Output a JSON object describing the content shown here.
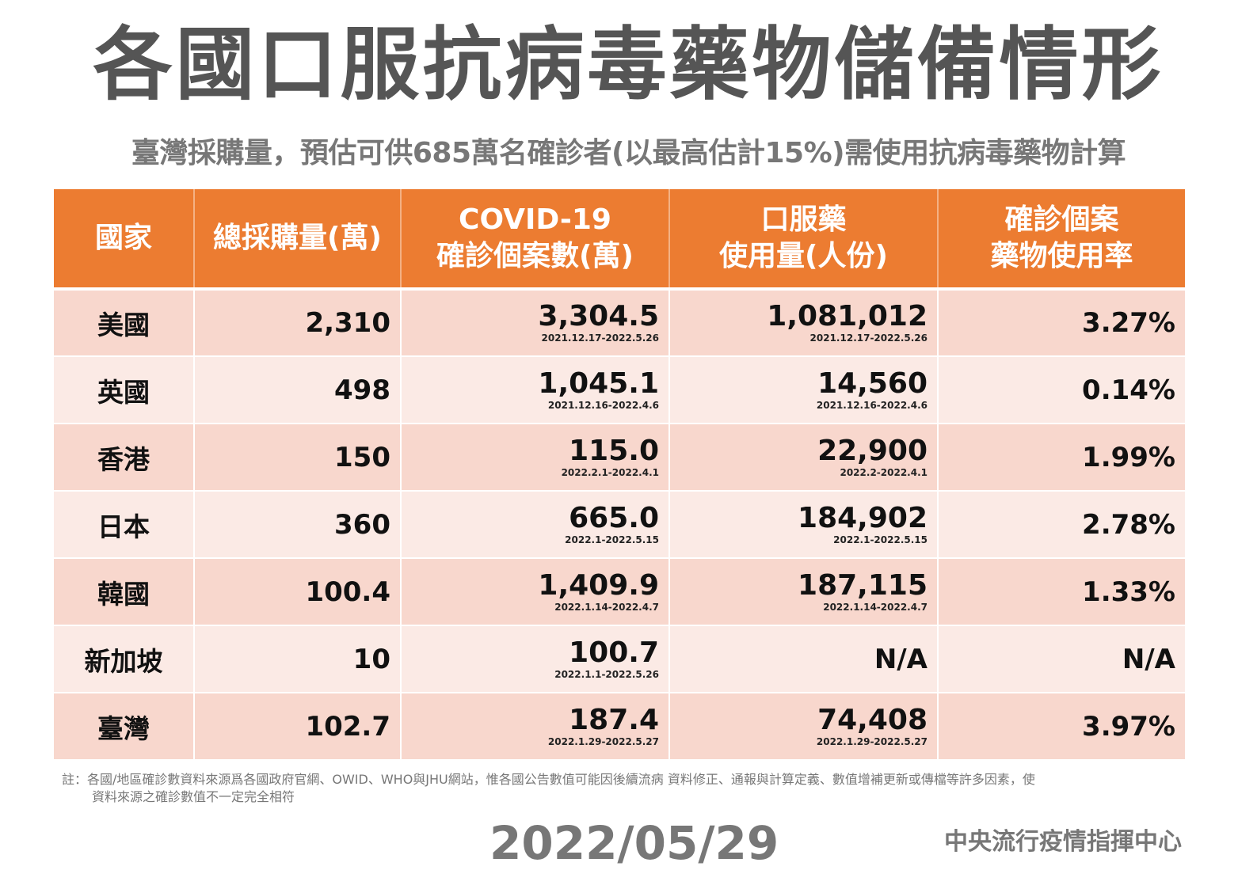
{
  "title": "各國口服抗病毒藥物儲備情形",
  "subtitle": "臺灣採購量，預估可供685萬名確診者(以最高估計15%)需使用抗病毒藥物計算",
  "colors": {
    "header_bg": "#ec7c31",
    "row_odd_bg": "#f8d7cd",
    "row_even_bg": "#fbeae5",
    "title_text": "#555555",
    "muted_text": "#777777"
  },
  "table": {
    "headers": [
      {
        "line1": "國家",
        "line2": ""
      },
      {
        "line1": "總採購量(萬)",
        "line2": ""
      },
      {
        "line1": "COVID-19",
        "line2": "確診個案數(萬)"
      },
      {
        "line1": "口服藥",
        "line2": "使用量(人份)"
      },
      {
        "line1": "確診個案",
        "line2": "藥物使用率"
      }
    ],
    "rows": [
      {
        "country": "美國",
        "purchase": "2,310",
        "cases": "3,304.5",
        "cases_period": "2021.12.17-2022.5.26",
        "usage": "1,081,012",
        "usage_period": "2021.12.17-2022.5.26",
        "rate": "3.27%"
      },
      {
        "country": "英國",
        "purchase": "498",
        "cases": "1,045.1",
        "cases_period": "2021.12.16-2022.4.6",
        "usage": "14,560",
        "usage_period": "2021.12.16-2022.4.6",
        "rate": "0.14%"
      },
      {
        "country": "香港",
        "purchase": "150",
        "cases": "115.0",
        "cases_period": "2022.2.1-2022.4.1",
        "usage": "22,900",
        "usage_period": "2022.2-2022.4.1",
        "rate": "1.99%"
      },
      {
        "country": "日本",
        "purchase": "360",
        "cases": "665.0",
        "cases_period": "2022.1-2022.5.15",
        "usage": "184,902",
        "usage_period": "2022.1-2022.5.15",
        "rate": "2.78%"
      },
      {
        "country": "韓國",
        "purchase": "100.4",
        "cases": "1,409.9",
        "cases_period": "2022.1.14-2022.4.7",
        "usage": "187,115",
        "usage_period": "2022.1.14-2022.4.7",
        "rate": "1.33%"
      },
      {
        "country": "新加坡",
        "purchase": "10",
        "cases": "100.7",
        "cases_period": "2022.1.1-2022.5.26",
        "usage": "N/A",
        "usage_period": "",
        "rate": "N/A"
      },
      {
        "country": "臺灣",
        "purchase": "102.7",
        "cases": "187.4",
        "cases_period": "2022.1.29-2022.5.27",
        "usage": "74,408",
        "usage_period": "2022.1.29-2022.5.27",
        "rate": "3.97%"
      }
    ]
  },
  "note": {
    "line1": "註：各國/地區確診數資料來源爲各國政府官網、OWID、WHO與JHU網站，惟各國公告數值可能因後續流病 資料修正、通報與計算定義、數值增補更新或傳檔等許多因素，使",
    "line2": "資料來源之確診數值不一定完全相符"
  },
  "footer": {
    "date": "2022/05/29",
    "organization": "中央流行疫情指揮中心"
  }
}
